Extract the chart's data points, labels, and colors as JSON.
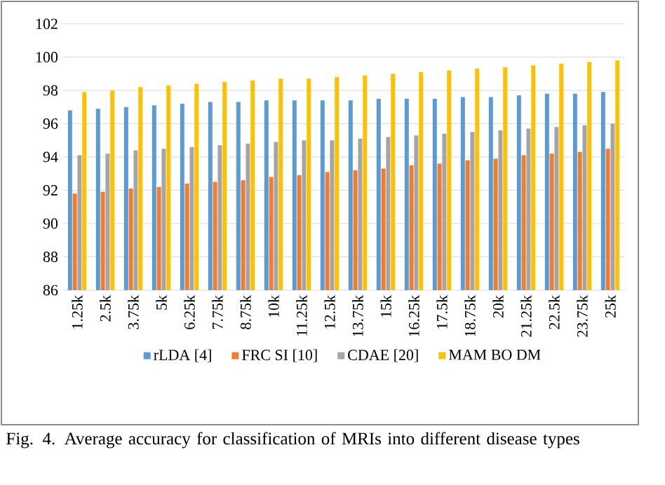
{
  "chart_data": {
    "type": "bar",
    "categories": [
      "1.25k",
      "2.5k",
      "3.75k",
      "5k",
      "6.25k",
      "7.75k",
      "8.75k",
      "10k",
      "11.25k",
      "12.5k",
      "13.75k",
      "15k",
      "16.25k",
      "17.5k",
      "18.75k",
      "20k",
      "21.25k",
      "22.5k",
      "23.75k",
      "25k"
    ],
    "series": [
      {
        "name": "rLDA [4]",
        "color": "#5b9bd5",
        "values": [
          96.8,
          96.9,
          97.0,
          97.1,
          97.2,
          97.3,
          97.3,
          97.4,
          97.4,
          97.4,
          97.4,
          97.5,
          97.5,
          97.5,
          97.6,
          97.6,
          97.7,
          97.8,
          97.8,
          97.9
        ]
      },
      {
        "name": "FRC SI [10]",
        "color": "#ed7d31",
        "values": [
          91.8,
          91.9,
          92.1,
          92.2,
          92.4,
          92.5,
          92.6,
          92.8,
          92.9,
          93.1,
          93.2,
          93.3,
          93.5,
          93.6,
          93.8,
          93.9,
          94.1,
          94.2,
          94.3,
          94.5
        ]
      },
      {
        "name": "CDAE [20]",
        "color": "#a5a5a5",
        "values": [
          94.1,
          94.2,
          94.4,
          94.5,
          94.6,
          94.7,
          94.8,
          94.9,
          95.0,
          95.0,
          95.1,
          95.2,
          95.3,
          95.4,
          95.5,
          95.6,
          95.7,
          95.8,
          95.9,
          96.0
        ]
      },
      {
        "name": "MAM BO DM",
        "color": "#ffc000",
        "values": [
          97.9,
          98.0,
          98.2,
          98.3,
          98.4,
          98.5,
          98.6,
          98.7,
          98.7,
          98.8,
          98.9,
          99.0,
          99.1,
          99.2,
          99.3,
          99.4,
          99.5,
          99.6,
          99.7,
          99.8
        ]
      }
    ],
    "ylim": [
      86,
      102
    ],
    "yticks": [
      86,
      88,
      90,
      92,
      94,
      96,
      98,
      100,
      102
    ],
    "grid": "y",
    "legend": "bottom",
    "annotations": [
      "Fig. 4.   Average accuracy for classification of MRIs into different disease types"
    ]
  }
}
